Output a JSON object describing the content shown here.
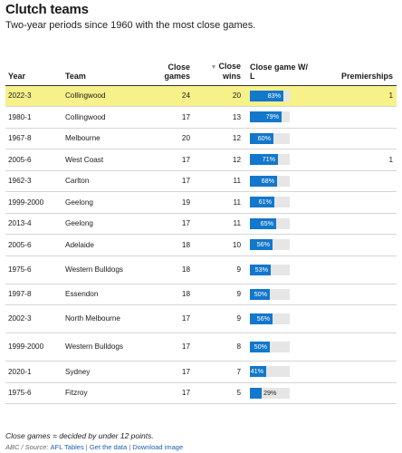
{
  "title": "Clutch teams",
  "subtitle": "Two-year periods since 1960 with the most close games.",
  "columns": {
    "year": "Year",
    "team": "Team",
    "close_games": "Close games",
    "close_wins": "Close wins",
    "sort_indicator": "▼",
    "win_pct": "Close game W/ L",
    "premierships": "Premierships"
  },
  "colors": {
    "highlight": "#f7f18a",
    "bar": "#1377cc",
    "track": "#e6e6e6"
  },
  "chart_data": {
    "type": "table",
    "rows": [
      {
        "year": "2022-3",
        "team": "Collingwood",
        "close_games": "24",
        "close_wins": "20",
        "win_pct": 83,
        "win_pct_label": "83%",
        "premierships": "1",
        "highlight": true
      },
      {
        "year": "1980-1",
        "team": "Collingwood",
        "close_games": "17",
        "close_wins": "13",
        "win_pct": 79,
        "win_pct_label": "79%",
        "premierships": ""
      },
      {
        "year": "1967-8",
        "team": "Melbourne",
        "close_games": "20",
        "close_wins": "12",
        "win_pct": 60,
        "win_pct_label": "60%",
        "premierships": ""
      },
      {
        "year": "2005-6",
        "team": "West Coast",
        "close_games": "17",
        "close_wins": "12",
        "win_pct": 71,
        "win_pct_label": "71%",
        "premierships": "1"
      },
      {
        "year": "1962-3",
        "team": "Carlton",
        "close_games": "17",
        "close_wins": "11",
        "win_pct": 68,
        "win_pct_label": "68%",
        "premierships": ""
      },
      {
        "year": "1999-2000",
        "team": "Geelong",
        "close_games": "19",
        "close_wins": "11",
        "win_pct": 61,
        "win_pct_label": "61%",
        "premierships": ""
      },
      {
        "year": "2013-4",
        "team": "Geelong",
        "close_games": "17",
        "close_wins": "11",
        "win_pct": 65,
        "win_pct_label": "65%",
        "premierships": ""
      },
      {
        "year": "2005-6",
        "team": "Adelaide",
        "close_games": "18",
        "close_wins": "10",
        "win_pct": 56,
        "win_pct_label": "56%",
        "premierships": ""
      },
      {
        "year": "1975-6",
        "team": "Western Bulldogs",
        "close_games": "18",
        "close_wins": "9",
        "win_pct": 53,
        "win_pct_label": "53%",
        "premierships": "",
        "tall": true
      },
      {
        "year": "1997-8",
        "team": "Essendon",
        "close_games": "18",
        "close_wins": "9",
        "win_pct": 50,
        "win_pct_label": "50%",
        "premierships": ""
      },
      {
        "year": "2002-3",
        "team": "North Melbourne",
        "close_games": "17",
        "close_wins": "9",
        "win_pct": 56,
        "win_pct_label": "56%",
        "premierships": "",
        "tall": true
      },
      {
        "year": "1999-2000",
        "team": "Western Bulldogs",
        "close_games": "17",
        "close_wins": "8",
        "win_pct": 50,
        "win_pct_label": "50%",
        "premierships": "",
        "tall": true
      },
      {
        "year": "2020-1",
        "team": "Sydney",
        "close_games": "17",
        "close_wins": "7",
        "win_pct": 41,
        "win_pct_label": "41%",
        "premierships": ""
      },
      {
        "year": "1975-6",
        "team": "Fitzroy",
        "close_games": "17",
        "close_wins": "5",
        "win_pct": 29,
        "win_pct_label": "29%",
        "premierships": ""
      }
    ]
  },
  "note": "Close games = decided by under 12 points.",
  "source": {
    "prefix": "ABC / Source: ",
    "link1": "AFL Tables",
    "sep1": " | ",
    "link2": "Get the data",
    "sep2": " | ",
    "link3": "Download image"
  }
}
